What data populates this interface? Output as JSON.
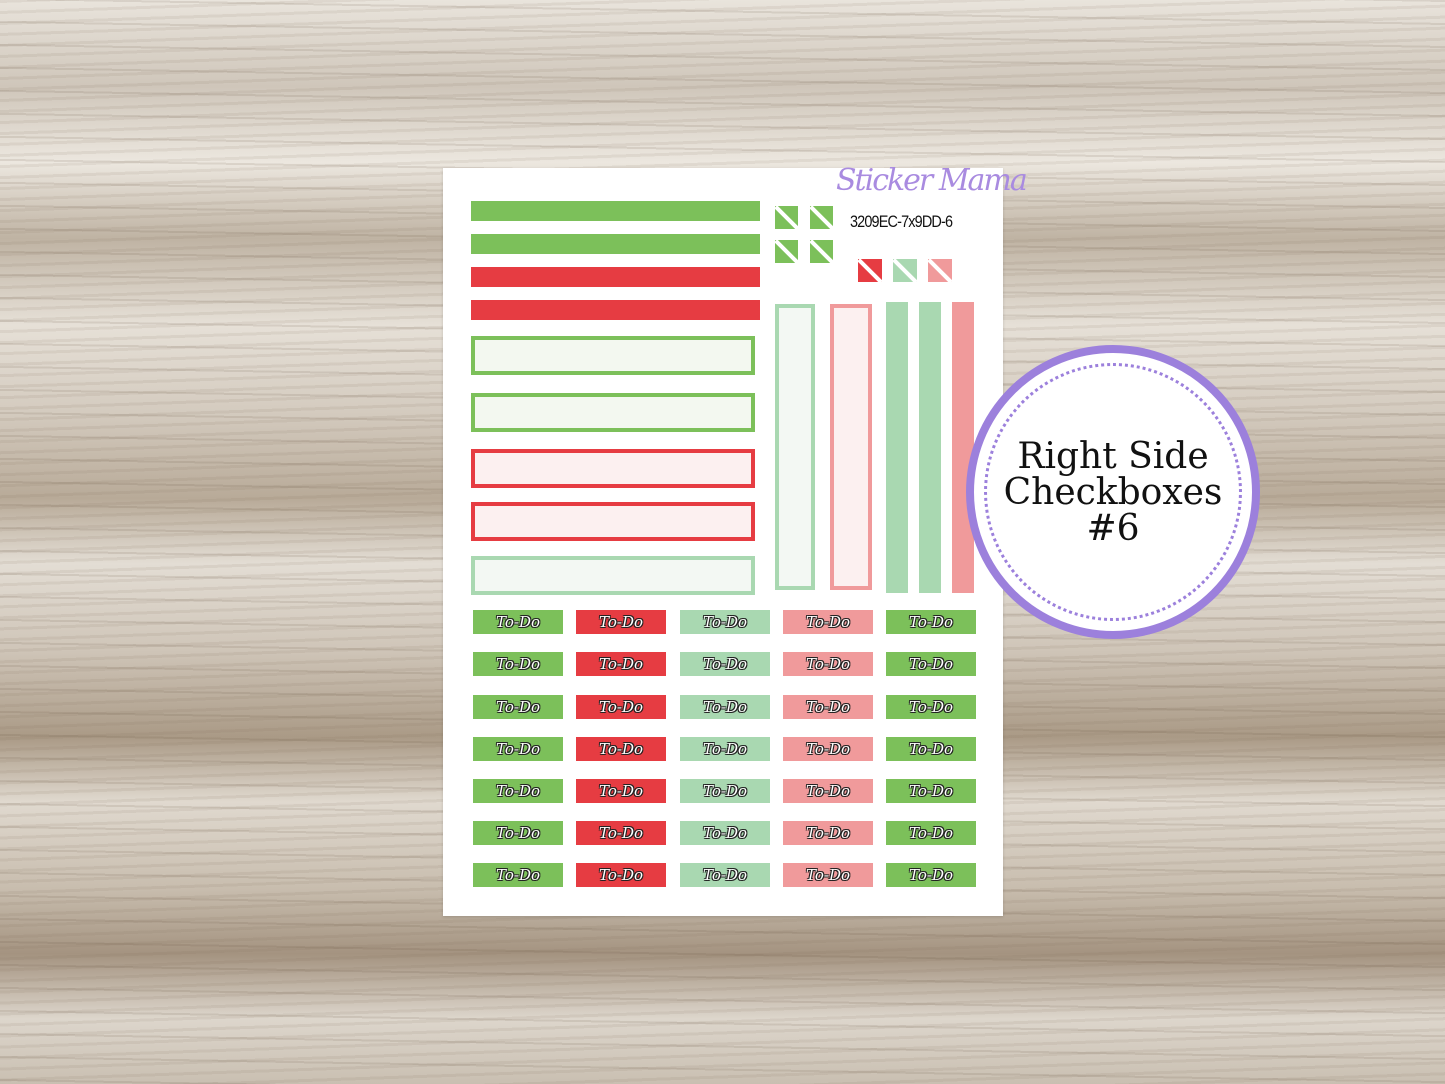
{
  "colors": {
    "green": "#7cc05a",
    "red": "#e63c42",
    "mint": "#a9d8b1",
    "pink": "#f09a9b",
    "purple": "#9c80dc"
  },
  "sheet": {
    "brand": "Sticker Mama",
    "product_code": "3209EC-7x9DD-6",
    "todo_label": "To-Do",
    "todo_columns": [
      "green",
      "red",
      "mint",
      "pink",
      "green"
    ],
    "todo_rows": 7
  },
  "badge": {
    "line1": "Right Side",
    "line2": "Checkboxes",
    "line3": "#6"
  }
}
